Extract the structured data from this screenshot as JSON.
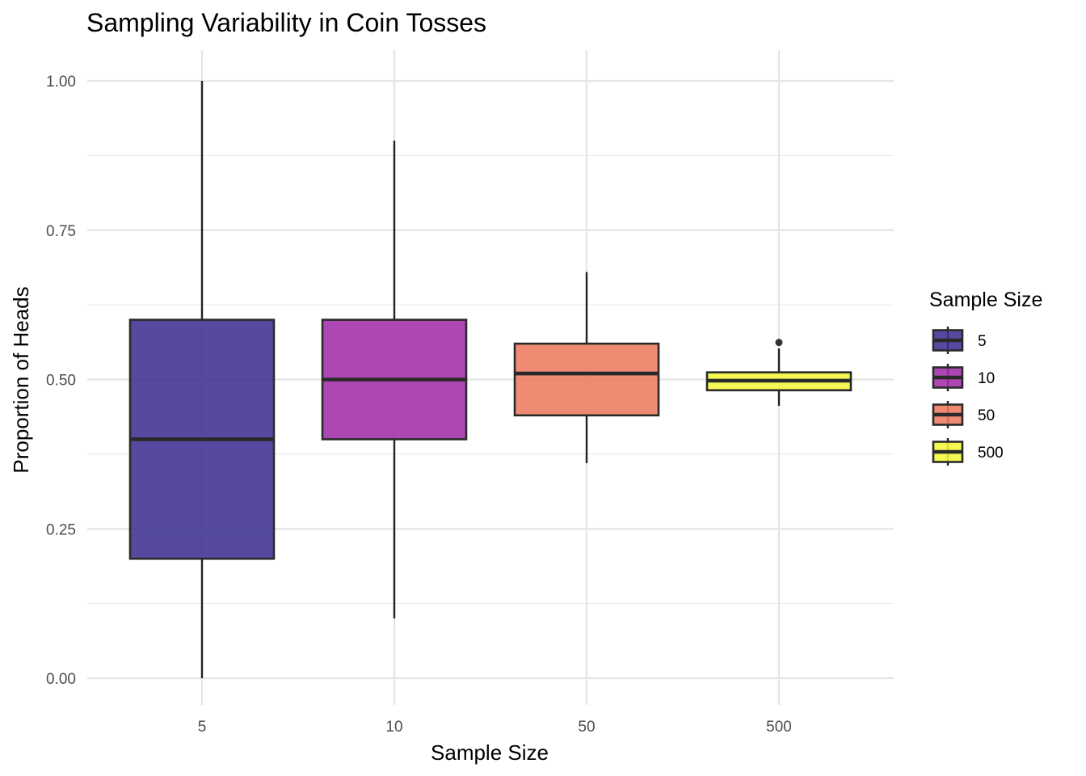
{
  "chart_data": {
    "type": "boxplot",
    "title": "Sampling Variability in Coin Tosses",
    "xlabel": "Sample Size",
    "ylabel": "Proportion of Heads",
    "ylim": [
      -0.04,
      1.04
    ],
    "y_ticks": [
      "0.00",
      "0.25",
      "0.50",
      "0.75",
      "1.00"
    ],
    "y_tick_values": [
      0,
      0.25,
      0.5,
      0.75,
      1.0
    ],
    "categories": [
      "5",
      "10",
      "50",
      "500"
    ],
    "grid": true,
    "legend": {
      "title": "Sample Size",
      "position": "right",
      "entries": [
        "5",
        "10",
        "50",
        "500"
      ]
    },
    "series": [
      {
        "category": "5",
        "color": "#3e3192",
        "min": 0.0,
        "q1": 0.2,
        "median": 0.4,
        "q3": 0.6,
        "max": 1.0,
        "outliers": []
      },
      {
        "category": "10",
        "color": "#a12ea8",
        "min": 0.1,
        "q1": 0.4,
        "median": 0.5,
        "q3": 0.6,
        "max": 0.9,
        "outliers": []
      },
      {
        "category": "50",
        "color": "#ec7b5f",
        "min": 0.36,
        "q1": 0.44,
        "median": 0.51,
        "q3": 0.56,
        "max": 0.68,
        "outliers": []
      },
      {
        "category": "500",
        "color": "#f4f73a",
        "min": 0.456,
        "q1": 0.482,
        "median": 0.498,
        "q3": 0.512,
        "max": 0.552,
        "outliers": [
          0.562
        ]
      }
    ]
  }
}
